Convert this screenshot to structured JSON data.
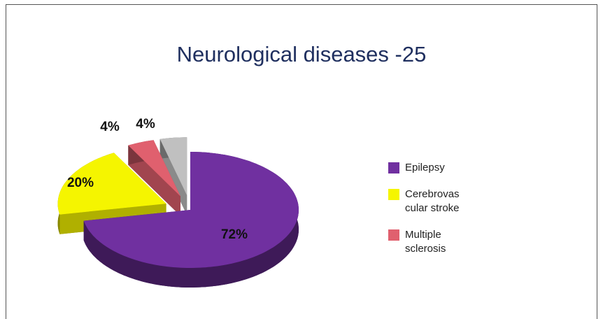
{
  "chart_data": {
    "type": "pie",
    "title": "Neurological diseases -25",
    "categories": [
      "Epilepsy",
      "Cerebrovas cular stroke",
      "Multiple sclerosis",
      null
    ],
    "values": [
      72,
      20,
      4,
      4
    ],
    "value_labels": [
      "72%",
      "20%",
      "4%",
      "4%"
    ],
    "colors": [
      "#7030a0",
      "#f5f500",
      "#e0606e",
      "#c0c0c0"
    ],
    "legend": "right"
  }
}
